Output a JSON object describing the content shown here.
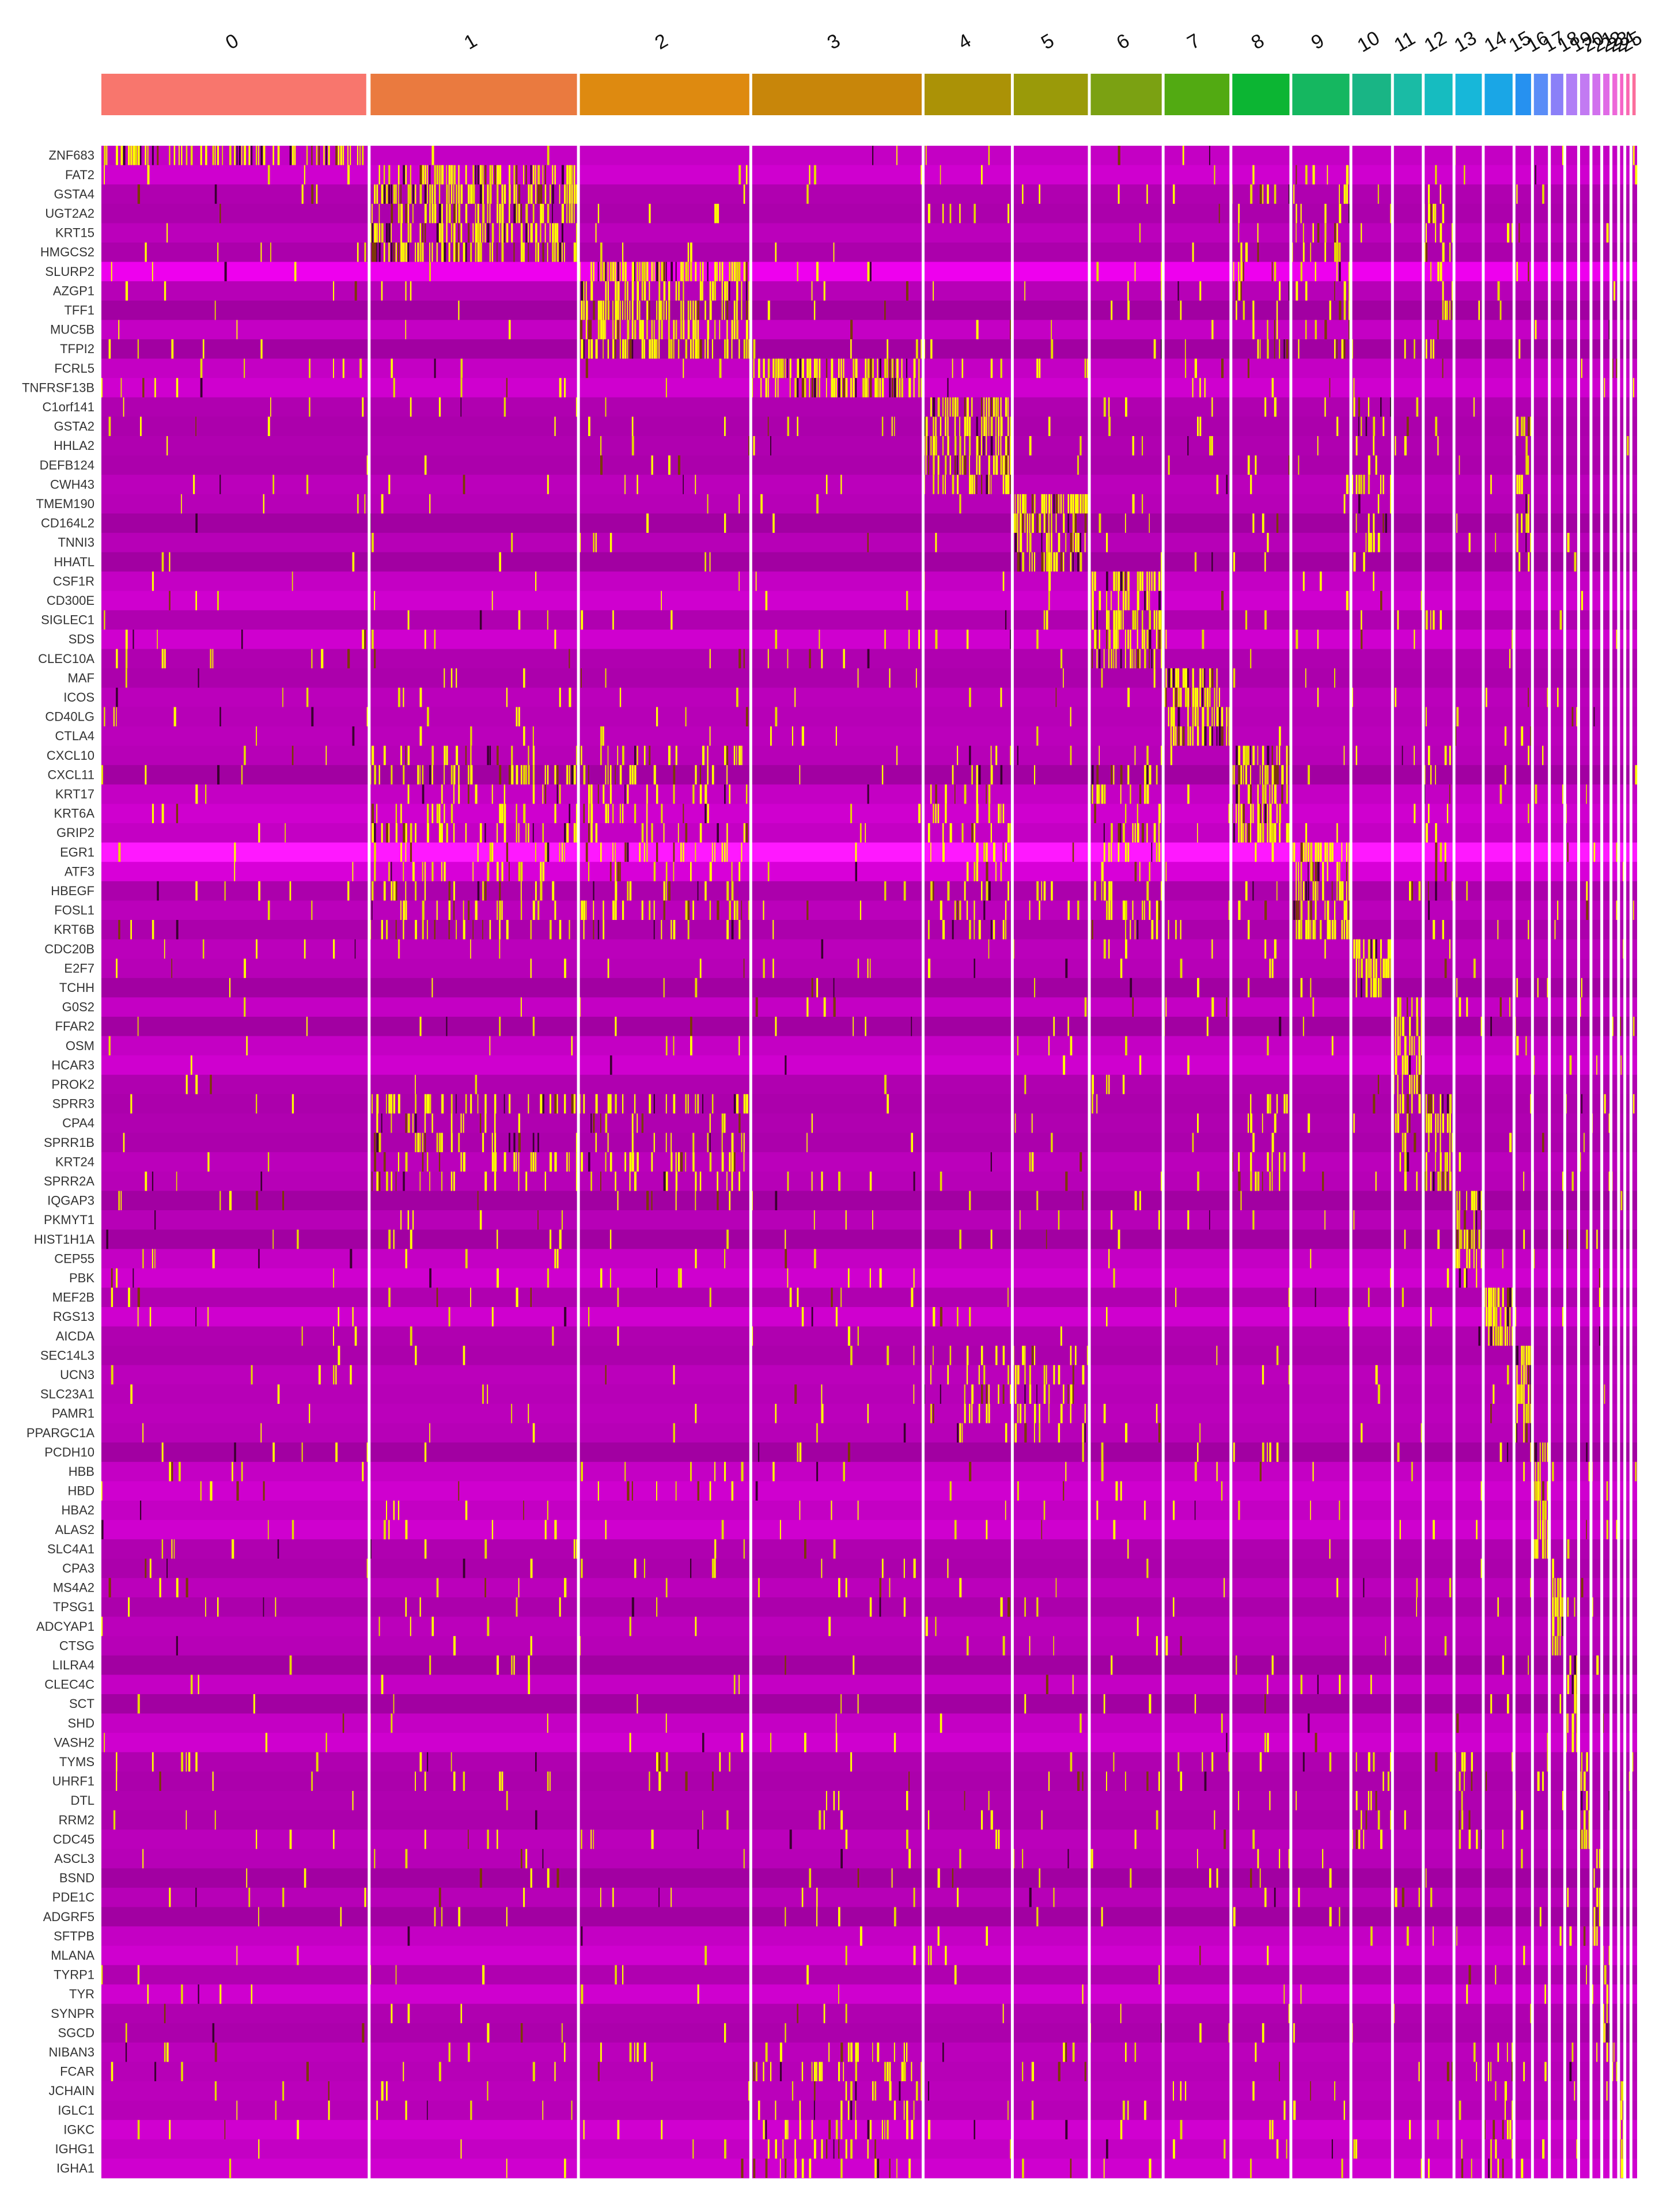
{
  "chart_data": {
    "type": "heatmap",
    "title": "",
    "xlabel": "",
    "ylabel": "",
    "legend": "none",
    "grid": false,
    "clusters": [
      "0",
      "1",
      "2",
      "3",
      "4",
      "5",
      "6",
      "7",
      "8",
      "9",
      "10",
      "11",
      "12",
      "13",
      "14",
      "15",
      "16",
      "17",
      "18",
      "19",
      "20",
      "21",
      "22",
      "23",
      "24",
      "25"
    ],
    "cluster_cell_fractions": [
      0.174,
      0.136,
      0.112,
      0.112,
      0.058,
      0.05,
      0.048,
      0.044,
      0.039,
      0.039,
      0.027,
      0.02,
      0.02,
      0.019,
      0.02,
      0.012,
      0.011,
      0.01,
      0.009,
      0.008,
      0.007,
      0.006,
      0.005,
      0.004,
      0.004,
      0.004
    ],
    "cluster_colors": [
      "#F8766D",
      "#EA7A3F",
      "#DE8A10",
      "#C8860A",
      "#AB9206",
      "#9A9A09",
      "#7BA112",
      "#52AA12",
      "#0CB533",
      "#15B760",
      "#19B585",
      "#1ABBA5",
      "#16BCC0",
      "#17B7D9",
      "#1AA6E6",
      "#2691F0",
      "#5A8DF7",
      "#8B80F8",
      "#B07EF6",
      "#C27AF2",
      "#D171EE",
      "#E06AE6",
      "#ED67D9",
      "#F565C7",
      "#F967B2",
      "#FB6E9C"
    ],
    "genes": [
      "ZNF683",
      "FAT2",
      "GSTA4",
      "UGT2A2",
      "KRT15",
      "HMGCS2",
      "SLURP2",
      "AZGP1",
      "TFF1",
      "MUC5B",
      "TFPI2",
      "FCRL5",
      "TNFRSF13B",
      "C1orf141",
      "GSTA2",
      "HHLA2",
      "DEFB124",
      "CWH43",
      "TMEM190",
      "CD164L2",
      "TNNI3",
      "HHATL",
      "CSF1R",
      "CD300E",
      "SIGLEC1",
      "SDS",
      "CLEC10A",
      "MAF",
      "ICOS",
      "CD40LG",
      "CTLA4",
      "CXCL10",
      "CXCL11",
      "KRT17",
      "KRT6A",
      "GRIP2",
      "EGR1",
      "ATF3",
      "HBEGF",
      "FOSL1",
      "KRT6B",
      "CDC20B",
      "E2F7",
      "TCHH",
      "G0S2",
      "FFAR2",
      "OSM",
      "HCAR3",
      "PROK2",
      "SPRR3",
      "CPA4",
      "SPRR1B",
      "KRT24",
      "SPRR2A",
      "IQGAP3",
      "PKMYT1",
      "HIST1H1A",
      "CEP55",
      "PBK",
      "MEF2B",
      "RGS13",
      "AICDA",
      "SEC14L3",
      "UCN3",
      "SLC23A1",
      "PAMR1",
      "PPARGC1A",
      "PCDH10",
      "HBB",
      "HBD",
      "HBA2",
      "ALAS2",
      "SLC4A1",
      "CPA3",
      "MS4A2",
      "TPSG1",
      "ADCYAP1",
      "CTSG",
      "LILRA4",
      "CLEC4C",
      "SCT",
      "SHD",
      "VASH2",
      "TYMS",
      "UHRF1",
      "DTL",
      "RRM2",
      "CDC45",
      "ASCL3",
      "BSND",
      "PDE1C",
      "ADGRF5",
      "SFTPB",
      "MLANA",
      "TYRP1",
      "TYR",
      "SYNPR",
      "SGCD",
      "NIBAN3",
      "FCAR",
      "JCHAIN",
      "IGLC1",
      "IGKC",
      "IGHG1",
      "IGHA1"
    ],
    "marker_blocks": [
      {
        "cluster": "0",
        "genes": [
          "ZNF683"
        ]
      },
      {
        "cluster": "1",
        "genes": [
          "FAT2",
          "GSTA4",
          "UGT2A2",
          "KRT15",
          "HMGCS2"
        ]
      },
      {
        "cluster": "2",
        "genes": [
          "SLURP2",
          "AZGP1",
          "TFF1",
          "MUC5B",
          "TFPI2"
        ]
      },
      {
        "cluster": "3",
        "genes": [
          "FCRL5",
          "TNFRSF13B"
        ]
      },
      {
        "cluster": "4",
        "genes": [
          "C1orf141",
          "GSTA2",
          "HHLA2",
          "DEFB124",
          "CWH43"
        ]
      },
      {
        "cluster": "5",
        "genes": [
          "TMEM190",
          "CD164L2",
          "TNNI3",
          "HHATL"
        ]
      },
      {
        "cluster": "6",
        "genes": [
          "CSF1R",
          "CD300E",
          "SIGLEC1",
          "SDS",
          "CLEC10A"
        ]
      },
      {
        "cluster": "7",
        "genes": [
          "MAF",
          "ICOS",
          "CD40LG",
          "CTLA4"
        ]
      },
      {
        "cluster": "8",
        "genes": [
          "CXCL10",
          "CXCL11",
          "KRT17",
          "KRT6A",
          "GRIP2"
        ]
      },
      {
        "cluster": "9",
        "genes": [
          "EGR1",
          "ATF3",
          "HBEGF",
          "FOSL1",
          "KRT6B"
        ]
      },
      {
        "cluster": "10",
        "genes": [
          "CDC20B",
          "E2F7",
          "TCHH"
        ]
      },
      {
        "cluster": "11",
        "genes": [
          "G0S2",
          "FFAR2",
          "OSM",
          "HCAR3",
          "PROK2"
        ]
      },
      {
        "cluster": "12",
        "genes": [
          "SPRR3",
          "CPA4",
          "SPRR1B",
          "KRT24",
          "SPRR2A"
        ]
      },
      {
        "cluster": "13",
        "genes": [
          "IQGAP3",
          "PKMYT1",
          "HIST1H1A",
          "CEP55",
          "PBK"
        ]
      },
      {
        "cluster": "14",
        "genes": [
          "MEF2B",
          "RGS13",
          "AICDA"
        ]
      },
      {
        "cluster": "15",
        "genes": [
          "SEC14L3",
          "UCN3",
          "SLC23A1",
          "PAMR1",
          "PPARGC1A"
        ]
      },
      {
        "cluster": "16",
        "genes": [
          "PCDH10",
          "HBB",
          "HBD",
          "HBA2",
          "ALAS2",
          "SLC4A1"
        ]
      },
      {
        "cluster": "17",
        "genes": [
          "CPA3",
          "MS4A2",
          "TPSG1",
          "ADCYAP1",
          "CTSG"
        ]
      },
      {
        "cluster": "18",
        "genes": [
          "LILRA4",
          "CLEC4C",
          "SCT",
          "SHD",
          "VASH2"
        ]
      },
      {
        "cluster": "19",
        "genes": [
          "TYMS",
          "UHRF1",
          "DTL",
          "RRM2",
          "CDC45"
        ]
      },
      {
        "cluster": "20",
        "genes": [
          "ASCL3",
          "BSND",
          "PDE1C",
          "ADGRF5",
          "SFTPB"
        ]
      },
      {
        "cluster": "21",
        "genes": [
          "MLANA",
          "TYRP1",
          "TYR",
          "SYNPR",
          "SGCD"
        ]
      },
      {
        "cluster": "22",
        "genes": [
          "NIBAN3",
          "FCAR"
        ]
      },
      {
        "cluster": "23",
        "genes": [
          "JCHAIN",
          "IGLC1",
          "IGKC",
          "IGHG1",
          "IGHA1"
        ]
      }
    ],
    "secondary_expression": [
      {
        "gene_range": [
          "FAT2",
          "TFPI2"
        ],
        "clusters": [
          "8",
          "9",
          "12"
        ]
      },
      {
        "gene_range": [
          "C1orf141",
          "HHATL"
        ],
        "clusters": [
          "10",
          "15"
        ]
      },
      {
        "gene_range": [
          "CXCL10",
          "KRT6B"
        ],
        "clusters": [
          "1",
          "2",
          "4",
          "6",
          "12"
        ]
      },
      {
        "gene_range": [
          "SPRR3",
          "SPRR2A"
        ],
        "clusters": [
          "1",
          "2",
          "8",
          "11"
        ]
      },
      {
        "gene_range": [
          "SEC14L3",
          "PPARGC1A"
        ],
        "clusters": [
          "4",
          "5"
        ]
      },
      {
        "gene_range": [
          "TYMS",
          "CDC45"
        ],
        "clusters": [
          "10",
          "13"
        ]
      },
      {
        "gene_range": [
          "NIBAN3",
          "IGHA1"
        ],
        "clusters": [
          "3",
          "14"
        ]
      }
    ],
    "color_scale": {
      "low": "#FF00FF",
      "mid": "#000000",
      "high": "#FFFF00"
    }
  }
}
